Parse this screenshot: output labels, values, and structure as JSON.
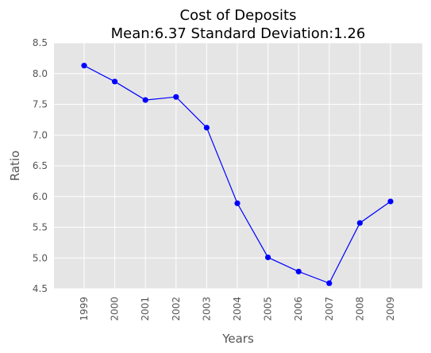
{
  "chart_data": {
    "type": "line",
    "title": "Cost of Deposits",
    "subtitle": "Mean:6.37 Standard Deviation:1.26",
    "xlabel": "Years",
    "ylabel": "Ratio",
    "categories": [
      "1999",
      "2000",
      "2001",
      "2002",
      "2003",
      "2004",
      "2005",
      "2006",
      "2007",
      "2008",
      "2009"
    ],
    "series": [
      {
        "values": [
          8.13,
          7.87,
          7.57,
          7.62,
          7.12,
          5.89,
          5.01,
          4.78,
          4.59,
          5.57,
          5.92
        ],
        "color": "#0000ff"
      }
    ],
    "ylim": [
      4.5,
      8.5
    ],
    "yticks": [
      "4.5",
      "5.0",
      "5.5",
      "6.0",
      "6.5",
      "7.0",
      "7.5",
      "8.0",
      "8.5"
    ],
    "grid": true,
    "legend": "none",
    "colors": {
      "background": "#e5e5e5",
      "grid": "#ffffff",
      "line": "#0000ff"
    }
  }
}
